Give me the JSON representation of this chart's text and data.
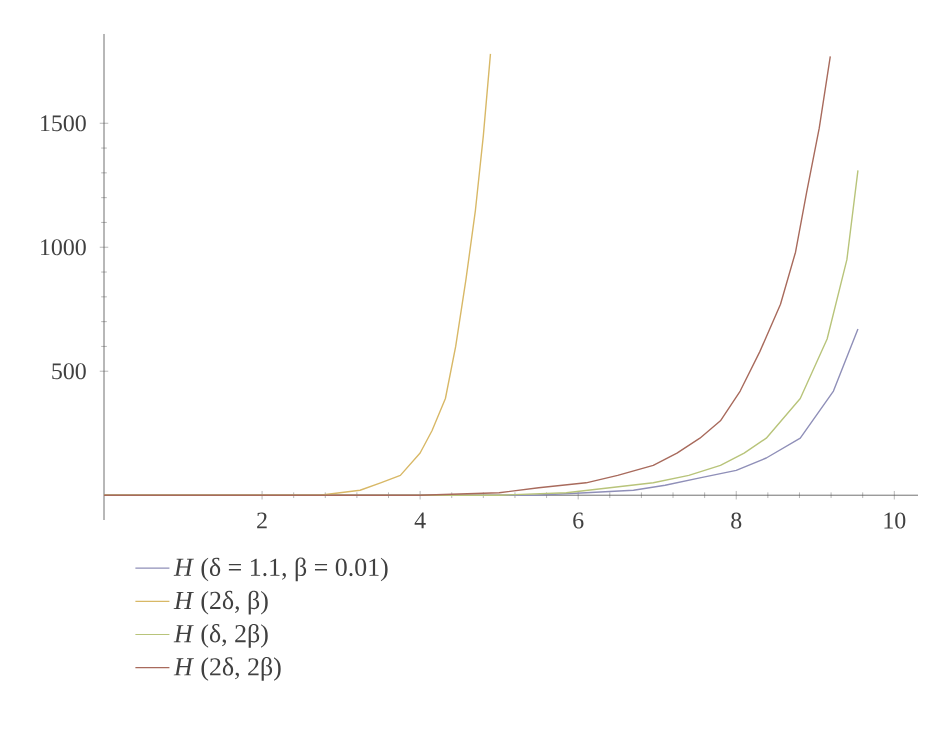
{
  "chart_data": {
    "type": "line",
    "xlim": [
      0,
      10.3
    ],
    "ylim": [
      -100,
      1860
    ],
    "xticks": [
      2,
      4,
      6,
      8,
      10
    ],
    "yticks": [
      500,
      1000,
      1500
    ],
    "legend": "bottom left",
    "grid": false,
    "marker": "none",
    "line_style": "solid",
    "series": [
      {
        "name": "*H* (δ = 1.1, β = 0.01)",
        "color": "#8f8fb8",
        "x": [
          0,
          3,
          4,
          5,
          5.44,
          6.1,
          6.7,
          7.1,
          7.54,
          8.0,
          8.38,
          8.81,
          9.23,
          9.54
        ],
        "values": [
          0,
          0,
          0,
          0,
          0,
          10,
          20,
          40,
          70,
          100,
          150,
          230,
          420,
          670
        ]
      },
      {
        "name": "*H* (2δ, β)",
        "color": "#d8b866",
        "x": [
          0,
          2,
          2.73,
          3.24,
          3.5,
          3.75,
          4.0,
          4.15,
          4.32,
          4.45,
          4.58,
          4.7,
          4.8,
          4.89
        ],
        "values": [
          0,
          0,
          0,
          20,
          50,
          80,
          170,
          260,
          390,
          600,
          870,
          1150,
          1450,
          1780
        ]
      },
      {
        "name": "*H* (δ, 2β)",
        "color": "#b8c47a",
        "x": [
          0,
          3,
          4,
          5,
          5.85,
          6.4,
          6.95,
          7.4,
          7.8,
          8.1,
          8.38,
          8.81,
          9.15,
          9.4,
          9.54
        ],
        "values": [
          0,
          0,
          0,
          0,
          10,
          30,
          50,
          80,
          120,
          170,
          230,
          390,
          630,
          950,
          1310
        ]
      },
      {
        "name": "*H* (2δ, 2β)",
        "color": "#a86a5c",
        "x": [
          0,
          3,
          4,
          5,
          5.5,
          6.1,
          6.5,
          6.95,
          7.25,
          7.54,
          7.8,
          8.05,
          8.3,
          8.56,
          8.75,
          8.89,
          9.05,
          9.19
        ],
        "values": [
          0,
          0,
          0,
          10,
          30,
          50,
          80,
          120,
          170,
          230,
          300,
          420,
          580,
          770,
          980,
          1220,
          1480,
          1770
        ]
      }
    ]
  }
}
